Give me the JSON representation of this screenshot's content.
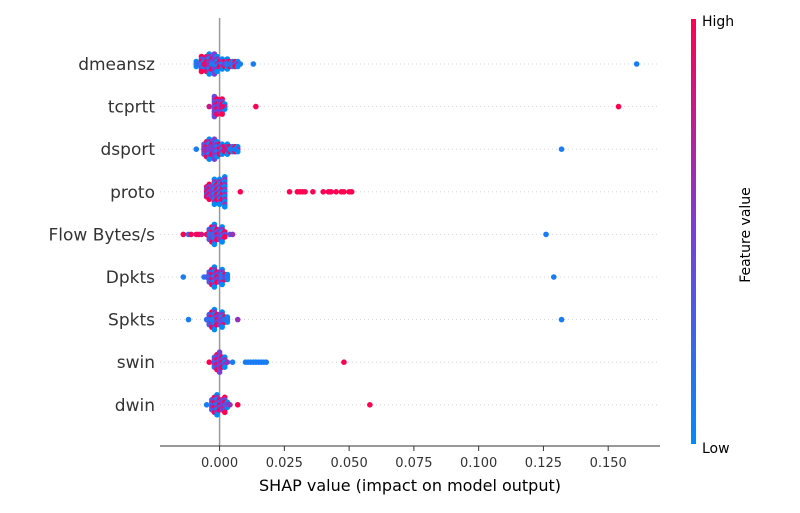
{
  "chart_data": {
    "type": "scatter",
    "xlabel": "SHAP value (impact on model output)",
    "xlim": [
      -0.023,
      0.17
    ],
    "x_ticks": [
      "0.000",
      "0.025",
      "0.050",
      "0.075",
      "0.100",
      "0.125",
      "0.150"
    ],
    "x_tick_values": [
      0,
      0.025,
      0.05,
      0.075,
      0.1,
      0.125,
      0.15
    ],
    "colorbar": {
      "label": "Feature value",
      "high": "High",
      "low": "Low",
      "high_color": "#ff0052",
      "low_color": "#008bfb"
    },
    "features": [
      {
        "name": "dmeansz",
        "cluster": [
          [
            -0.009,
            0.0,
            0.1
          ],
          [
            -0.007,
            1.0,
            0.5
          ],
          [
            -0.006,
            0.0,
            0.2
          ],
          [
            -0.005,
            1.0,
            0.5
          ],
          [
            -0.004,
            0.0,
            0.6
          ],
          [
            -0.003,
            1.0,
            0.3
          ],
          [
            -0.002,
            0.5,
            0.7
          ],
          [
            -0.001,
            0.0,
            0.5
          ],
          [
            0.0,
            1.0,
            0.2
          ],
          [
            0.001,
            0.0,
            0.4
          ],
          [
            0.002,
            1.0,
            0.1
          ],
          [
            0.003,
            0.0,
            0.3
          ],
          [
            0.004,
            1.0,
            0.1
          ],
          [
            0.005,
            0.0,
            0.0
          ],
          [
            0.006,
            1.0,
            0.1
          ],
          [
            0.007,
            0.0,
            0.1
          ]
        ],
        "points": [
          [
            -0.009,
            0.1
          ],
          [
            -0.008,
            0.3
          ],
          [
            -0.007,
            0.1
          ],
          [
            -0.006,
            0.9
          ],
          [
            -0.004,
            0.6
          ],
          [
            -0.003,
            0.1
          ],
          [
            0.002,
            0.4
          ],
          [
            0.003,
            0.1
          ],
          [
            0.004,
            0.2
          ],
          [
            0.008,
            0.1
          ],
          [
            0.013,
            0.1
          ],
          [
            0.161,
            0.1
          ]
        ]
      },
      {
        "name": "tcprtt",
        "cluster": [
          [
            -0.002,
            0.4,
            0.6
          ],
          [
            -0.001,
            1.0,
            0.5
          ],
          [
            0.0,
            0.5,
            0.3
          ],
          [
            0.001,
            1.0,
            0.5
          ],
          [
            0.002,
            0.0,
            0.2
          ]
        ],
        "points": [
          [
            -0.004,
            0.8
          ],
          [
            0.001,
            0.9
          ],
          [
            0.014,
            1.0
          ],
          [
            0.154,
            1.0
          ]
        ]
      },
      {
        "name": "dsport",
        "cluster": [
          [
            -0.006,
            0.3,
            0.4
          ],
          [
            -0.005,
            1.0,
            0.5
          ],
          [
            -0.004,
            0.0,
            0.6
          ],
          [
            -0.003,
            1.0,
            0.4
          ],
          [
            -0.002,
            0.5,
            0.7
          ],
          [
            -0.001,
            0.0,
            0.5
          ],
          [
            0.0,
            1.0,
            0.3
          ],
          [
            0.001,
            0.0,
            0.4
          ],
          [
            0.002,
            1.0,
            0.2
          ],
          [
            0.003,
            0.0,
            0.3
          ],
          [
            0.004,
            1.0,
            0.1
          ],
          [
            0.005,
            0.0,
            0.0
          ],
          [
            0.006,
            1.0,
            0.1
          ],
          [
            0.007,
            0.0,
            0.1
          ]
        ],
        "points": [
          [
            -0.009,
            0.1
          ],
          [
            -0.006,
            0.6
          ],
          [
            -0.004,
            0.5
          ],
          [
            0.002,
            0.8
          ],
          [
            0.004,
            0.1
          ],
          [
            0.006,
            0.1
          ],
          [
            0.132,
            0.1
          ]
        ]
      },
      {
        "name": "proto",
        "cluster": [
          [
            -0.005,
            0.9,
            0.4
          ],
          [
            -0.004,
            1.0,
            0.5
          ],
          [
            -0.003,
            0.5,
            0.3
          ],
          [
            -0.002,
            0.0,
            0.8
          ],
          [
            -0.001,
            1.0,
            0.5
          ],
          [
            0.0,
            0.0,
            0.9
          ],
          [
            0.001,
            1.0,
            0.5
          ],
          [
            0.002,
            0.0,
            1.0
          ]
        ],
        "points": [
          [
            0.008,
            1.0
          ],
          [
            0.027,
            1.0
          ],
          [
            0.03,
            1.0
          ],
          [
            0.031,
            1.0
          ],
          [
            0.032,
            1.0
          ],
          [
            0.033,
            1.0
          ],
          [
            0.036,
            1.0
          ],
          [
            0.04,
            1.0
          ],
          [
            0.042,
            1.0
          ],
          [
            0.043,
            1.0
          ],
          [
            0.045,
            1.0
          ],
          [
            0.047,
            1.0
          ],
          [
            0.048,
            1.0
          ],
          [
            0.05,
            1.0
          ],
          [
            0.051,
            1.0
          ]
        ]
      },
      {
        "name": "Flow Bytes/s",
        "cluster": [
          [
            -0.004,
            0.3,
            0.4
          ],
          [
            -0.003,
            1.0,
            0.5
          ],
          [
            -0.002,
            0.0,
            0.6
          ],
          [
            -0.001,
            1.0,
            0.4
          ],
          [
            0.0,
            0.5,
            0.3
          ],
          [
            0.001,
            0.0,
            0.5
          ],
          [
            0.002,
            1.0,
            0.2
          ]
        ],
        "points": [
          [
            -0.014,
            1.0
          ],
          [
            -0.012,
            0.2
          ],
          [
            -0.011,
            1.0
          ],
          [
            -0.009,
            0.9
          ],
          [
            -0.008,
            1.0
          ],
          [
            -0.007,
            0.8
          ],
          [
            -0.005,
            1.0
          ],
          [
            -0.004,
            0.2
          ],
          [
            -0.003,
            0.3
          ],
          [
            0.004,
            0.3
          ],
          [
            0.005,
            0.6
          ],
          [
            0.126,
            0.1
          ]
        ]
      },
      {
        "name": "Dpkts",
        "cluster": [
          [
            -0.004,
            0.3,
            0.4
          ],
          [
            -0.003,
            1.0,
            0.5
          ],
          [
            -0.002,
            0.0,
            0.6
          ],
          [
            -0.001,
            1.0,
            0.4
          ],
          [
            0.0,
            0.5,
            0.3
          ],
          [
            0.001,
            0.0,
            0.5
          ],
          [
            0.002,
            1.0,
            0.2
          ],
          [
            0.003,
            0.0,
            0.1
          ]
        ],
        "points": [
          [
            -0.014,
            0.1
          ],
          [
            -0.006,
            0.1
          ],
          [
            -0.005,
            0.3
          ],
          [
            0.001,
            0.1
          ],
          [
            0.002,
            0.5
          ],
          [
            0.003,
            0.1
          ],
          [
            0.129,
            0.1
          ]
        ]
      },
      {
        "name": "Spkts",
        "cluster": [
          [
            -0.004,
            0.3,
            0.4
          ],
          [
            -0.003,
            1.0,
            0.5
          ],
          [
            -0.002,
            0.0,
            0.6
          ],
          [
            -0.001,
            1.0,
            0.4
          ],
          [
            0.0,
            0.5,
            0.3
          ],
          [
            0.001,
            0.0,
            0.5
          ],
          [
            0.002,
            1.0,
            0.2
          ],
          [
            0.003,
            0.0,
            0.1
          ]
        ],
        "points": [
          [
            -0.012,
            0.1
          ],
          [
            -0.005,
            0.2
          ],
          [
            -0.003,
            0.1
          ],
          [
            0.001,
            0.4
          ],
          [
            0.002,
            0.2
          ],
          [
            0.003,
            0.1
          ],
          [
            0.007,
            0.6
          ],
          [
            0.132,
            0.1
          ]
        ]
      },
      {
        "name": "swin",
        "cluster": [
          [
            -0.002,
            0.2,
            0.4
          ],
          [
            -0.001,
            1.0,
            0.5
          ],
          [
            0.0,
            0.5,
            0.6
          ],
          [
            0.001,
            1.0,
            0.4
          ],
          [
            0.002,
            0.0,
            0.3
          ]
        ],
        "points": [
          [
            -0.004,
            1.0
          ],
          [
            0.003,
            0.6
          ],
          [
            0.005,
            0.1
          ],
          [
            0.01,
            0.1
          ],
          [
            0.011,
            0.1
          ],
          [
            0.012,
            0.1
          ],
          [
            0.013,
            0.1
          ],
          [
            0.014,
            0.1
          ],
          [
            0.015,
            0.1
          ],
          [
            0.016,
            0.1
          ],
          [
            0.017,
            0.1
          ],
          [
            0.018,
            0.1
          ],
          [
            0.048,
            1.0
          ]
        ]
      },
      {
        "name": "dwin",
        "cluster": [
          [
            -0.003,
            0.3,
            0.4
          ],
          [
            -0.002,
            1.0,
            0.5
          ],
          [
            -0.001,
            0.0,
            0.6
          ],
          [
            0.0,
            1.0,
            0.4
          ],
          [
            0.001,
            0.5,
            0.3
          ],
          [
            0.002,
            1.0,
            0.5
          ],
          [
            0.003,
            0.0,
            0.2
          ]
        ],
        "points": [
          [
            -0.005,
            0.1
          ],
          [
            0.002,
            0.4
          ],
          [
            0.004,
            0.6
          ],
          [
            0.007,
            1.0
          ],
          [
            0.058,
            1.0
          ]
        ]
      }
    ]
  }
}
